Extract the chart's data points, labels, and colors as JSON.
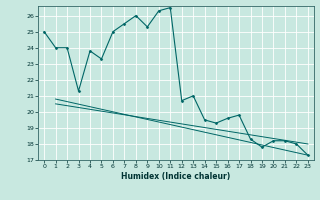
{
  "title": "",
  "xlabel": "Humidex (Indice chaleur)",
  "ylabel": "",
  "background_color": "#c8e8e0",
  "grid_color": "#ffffff",
  "line_color": "#006666",
  "xlim": [
    -0.5,
    23.5
  ],
  "ylim": [
    17,
    26.6
  ],
  "yticks": [
    17,
    18,
    19,
    20,
    21,
    22,
    23,
    24,
    25,
    26
  ],
  "xticks": [
    0,
    1,
    2,
    3,
    4,
    5,
    6,
    7,
    8,
    9,
    10,
    11,
    12,
    13,
    14,
    15,
    16,
    17,
    18,
    19,
    20,
    21,
    22,
    23
  ],
  "line1_x": [
    0,
    1,
    2,
    3,
    4,
    5,
    6,
    7,
    8,
    9,
    10,
    11,
    12,
    13,
    14,
    15,
    16,
    17,
    18,
    19,
    20,
    21,
    22,
    23
  ],
  "line1_y": [
    25.0,
    24.0,
    24.0,
    21.3,
    23.8,
    23.3,
    25.0,
    25.5,
    26.0,
    25.3,
    26.3,
    26.5,
    20.7,
    21.0,
    19.5,
    19.3,
    19.6,
    19.8,
    18.3,
    17.8,
    18.2,
    18.2,
    18.0,
    17.3
  ],
  "line2_x": [
    1,
    23
  ],
  "line2_y": [
    20.8,
    17.3
  ],
  "line3_x": [
    1,
    23
  ],
  "line3_y": [
    20.5,
    18.0
  ]
}
